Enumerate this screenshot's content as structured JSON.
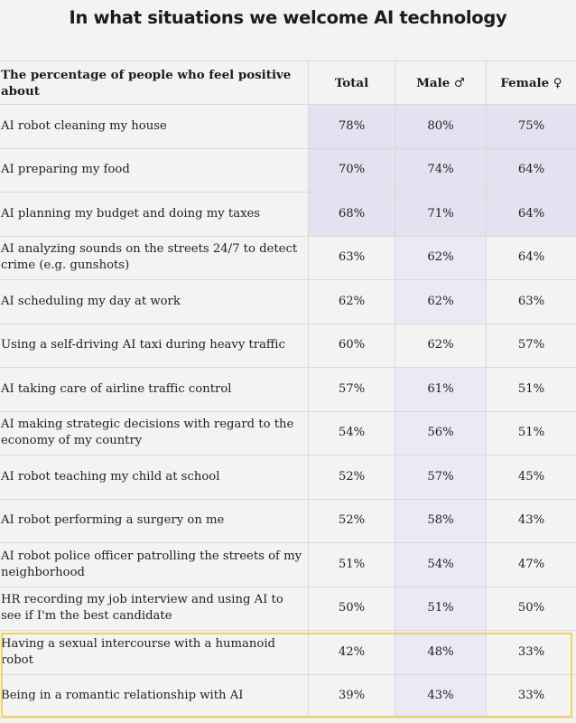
{
  "title": "In what situations we welcome AI technology",
  "chart_data": {
    "type": "table",
    "title": "In what situations we welcome AI technology",
    "columns": [
      "The percentage of people who feel positive about",
      "Total",
      "Male ♂",
      "Female ♀"
    ],
    "rows": [
      {
        "label": "AI robot cleaning my house",
        "total": "78%",
        "male": "80%",
        "female": "75%"
      },
      {
        "label": "AI preparing my food",
        "total": "70%",
        "male": "74%",
        "female": "64%"
      },
      {
        "label": "AI planning my budget and doing my taxes",
        "total": "68%",
        "male": "71%",
        "female": "64%"
      },
      {
        "label": "AI analyzing sounds on the streets 24/7 to detect crime (e.g. gunshots)",
        "total": "63%",
        "male": "62%",
        "female": "64%"
      },
      {
        "label": "AI scheduling my day at work",
        "total": "62%",
        "male": "62%",
        "female": "63%"
      },
      {
        "label": "Using a self-driving AI taxi during heavy traffic",
        "total": "60%",
        "male": "62%",
        "female": "57%"
      },
      {
        "label": "AI taking care of airline traffic control",
        "total": "57%",
        "male": "61%",
        "female": "51%"
      },
      {
        "label": "AI making strategic decisions with regard to the economy of my country",
        "total": "54%",
        "male": "56%",
        "female": "51%"
      },
      {
        "label": "AI robot teaching my child at school",
        "total": "52%",
        "male": "57%",
        "female": "45%"
      },
      {
        "label": "AI robot performing a surgery on me",
        "total": "52%",
        "male": "58%",
        "female": "43%"
      },
      {
        "label": "AI robot police officer patrolling the streets of my neighborhood",
        "total": "51%",
        "male": "54%",
        "female": "47%"
      },
      {
        "label": "HR recording my job interview and using AI to see if I'm the best candidate",
        "total": "50%",
        "male": "51%",
        "female": "50%"
      },
      {
        "label": "Having a sexual intercourse with a humanoid robot",
        "total": "42%",
        "male": "48%",
        "female": "33%"
      },
      {
        "label": "Being in a romantic relationship with AI",
        "total": "39%",
        "male": "43%",
        "female": "33%"
      }
    ]
  },
  "colors": {
    "highlight_strong": "#e4e1f0",
    "highlight_light": "#ebe9f4",
    "outline": "#f2d25a"
  }
}
